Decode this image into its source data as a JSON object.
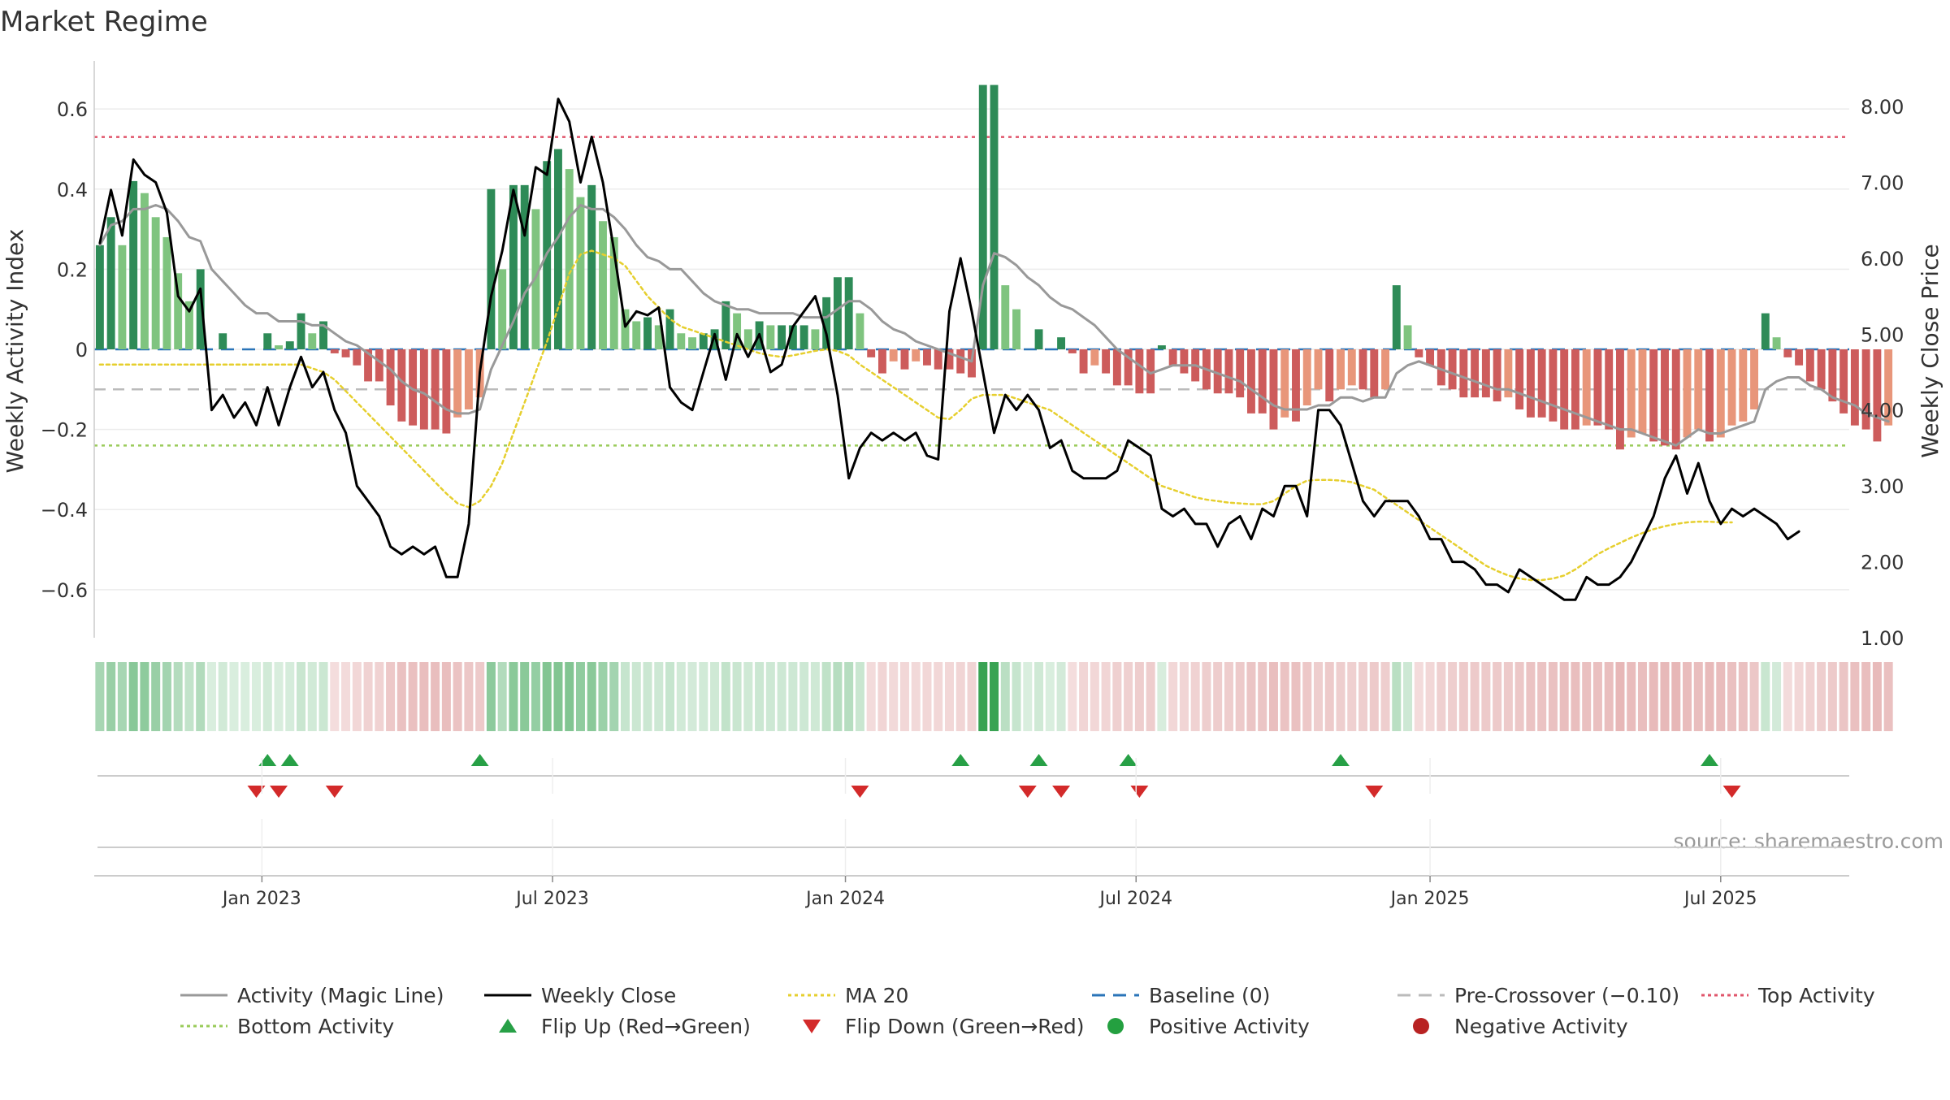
{
  "chart_data": {
    "type": "bar",
    "title": "Market Regime",
    "source": "source: sharemaestro.com",
    "ylabel_left": "Weekly Activity Index",
    "ylabel_right": "Weekly Close Price",
    "ylim_left": [
      -0.72,
      0.72
    ],
    "ylim_right": [
      1.0,
      8.6
    ],
    "yticks_left": [
      {
        "v": 0.6,
        "label": "0.6"
      },
      {
        "v": 0.4,
        "label": "0.4"
      },
      {
        "v": 0.2,
        "label": "0.2"
      },
      {
        "v": 0,
        "label": "0"
      },
      {
        "v": -0.2,
        "label": "−0.2"
      },
      {
        "v": -0.4,
        "label": "−0.4"
      },
      {
        "v": -0.6,
        "label": "−0.6"
      }
    ],
    "yticks_right": [
      "8.00",
      "7.00",
      "6.00",
      "5.00",
      "4.00",
      "3.00",
      "2.00",
      "1.00"
    ],
    "xticks": [
      {
        "week": 14.5,
        "label": "Jan 2023"
      },
      {
        "week": 40.5,
        "label": "Jul 2023"
      },
      {
        "week": 66.7,
        "label": "Jan 2024"
      },
      {
        "week": 92.7,
        "label": "Jul 2024"
      },
      {
        "week": 119,
        "label": "Jan 2025"
      },
      {
        "week": 145,
        "label": "Jul 2025"
      }
    ],
    "num_weeks": 157,
    "reference_lines": {
      "top_activity": 0.53,
      "baseline": 0,
      "pre_crossover": -0.1,
      "bottom_activity": -0.24
    },
    "activity_bars": [
      0.26,
      0.33,
      0.26,
      0.42,
      0.39,
      0.33,
      0.28,
      0.19,
      0.12,
      0.2,
      0.0,
      0.04,
      0.0,
      0.0,
      0.0,
      0.04,
      0.01,
      0.02,
      0.09,
      0.04,
      0.07,
      -0.01,
      -0.02,
      -0.04,
      -0.08,
      -0.08,
      -0.14,
      -0.18,
      -0.19,
      -0.2,
      -0.2,
      -0.21,
      -0.17,
      -0.15,
      -0.12,
      0.4,
      0.2,
      0.41,
      0.41,
      0.35,
      0.47,
      0.5,
      0.45,
      0.38,
      0.41,
      0.32,
      0.28,
      0.1,
      0.07,
      0.08,
      0.06,
      0.1,
      0.04,
      0.03,
      0.04,
      0.05,
      0.12,
      0.09,
      0.05,
      0.07,
      0.06,
      0.06,
      0.06,
      0.06,
      0.05,
      0.13,
      0.18,
      0.18,
      0.09,
      -0.02,
      -0.06,
      -0.03,
      -0.05,
      -0.03,
      -0.04,
      -0.05,
      -0.05,
      -0.06,
      -0.07,
      0.66,
      0.66,
      0.16,
      0.1,
      0.0,
      0.05,
      0.0,
      0.03,
      -0.01,
      -0.06,
      -0.04,
      -0.06,
      -0.09,
      -0.09,
      -0.11,
      -0.11,
      0.01,
      -0.04,
      -0.06,
      -0.08,
      -0.1,
      -0.11,
      -0.11,
      -0.12,
      -0.16,
      -0.16,
      -0.2,
      -0.17,
      -0.18,
      -0.14,
      -0.1,
      -0.13,
      -0.1,
      -0.09,
      -0.1,
      -0.12,
      -0.1,
      0.16,
      0.06,
      -0.02,
      -0.04,
      -0.09,
      -0.1,
      -0.12,
      -0.12,
      -0.12,
      -0.13,
      -0.12,
      -0.15,
      -0.17,
      -0.17,
      -0.18,
      -0.2,
      -0.2,
      -0.19,
      -0.19,
      -0.2,
      -0.25,
      -0.22,
      -0.21,
      -0.23,
      -0.24,
      -0.25,
      -0.22,
      -0.2,
      -0.23,
      -0.22,
      -0.19,
      -0.18,
      -0.15,
      0.09,
      0.03,
      -0.02,
      -0.04,
      -0.08,
      -0.1,
      -0.13,
      -0.16,
      -0.19,
      -0.2,
      -0.23,
      -0.19
    ],
    "series": [
      {
        "name": "Activity (Magic Line)",
        "color": "#999999",
        "values": [
          0.26,
          0.31,
          0.32,
          0.35,
          0.35,
          0.36,
          0.35,
          0.32,
          0.28,
          0.27,
          0.2,
          0.17,
          0.14,
          0.11,
          0.09,
          0.09,
          0.07,
          0.07,
          0.07,
          0.06,
          0.06,
          0.04,
          0.02,
          0.01,
          -0.01,
          -0.03,
          -0.05,
          -0.08,
          -0.1,
          -0.11,
          -0.13,
          -0.15,
          -0.16,
          -0.16,
          -0.15,
          -0.05,
          0.01,
          0.07,
          0.14,
          0.18,
          0.24,
          0.28,
          0.33,
          0.36,
          0.35,
          0.35,
          0.33,
          0.3,
          0.26,
          0.23,
          0.22,
          0.2,
          0.2,
          0.17,
          0.14,
          0.12,
          0.11,
          0.1,
          0.1,
          0.09,
          0.09,
          0.09,
          0.09,
          0.08,
          0.08,
          0.08,
          0.1,
          0.12,
          0.12,
          0.1,
          0.07,
          0.05,
          0.04,
          0.02,
          0.01,
          0.0,
          -0.01,
          -0.02,
          -0.03,
          0.16,
          0.24,
          0.23,
          0.21,
          0.18,
          0.16,
          0.13,
          0.11,
          0.1,
          0.08,
          0.06,
          0.03,
          0.0,
          -0.02,
          -0.04,
          -0.06,
          -0.05,
          -0.04,
          -0.04,
          -0.04,
          -0.05,
          -0.06,
          -0.07,
          -0.08,
          -0.1,
          -0.12,
          -0.14,
          -0.15,
          -0.15,
          -0.15,
          -0.14,
          -0.14,
          -0.12,
          -0.12,
          -0.13,
          -0.12,
          -0.12,
          -0.06,
          -0.04,
          -0.03,
          -0.04,
          -0.05,
          -0.06,
          -0.07,
          -0.08,
          -0.09,
          -0.1,
          -0.1,
          -0.11,
          -0.12,
          -0.13,
          -0.14,
          -0.15,
          -0.16,
          -0.17,
          -0.18,
          -0.19,
          -0.2,
          -0.2,
          -0.21,
          -0.22,
          -0.23,
          -0.24,
          -0.22,
          -0.2,
          -0.21,
          -0.21,
          -0.2,
          -0.19,
          -0.18,
          -0.1,
          -0.08,
          -0.07,
          -0.07,
          -0.09,
          -0.1,
          -0.12,
          -0.13,
          -0.14,
          -0.16,
          -0.17,
          -0.18
        ]
      },
      {
        "name": "Weekly Close",
        "color": "#000000",
        "values": [
          6.2,
          6.9,
          6.3,
          7.3,
          7.1,
          7.0,
          6.6,
          5.5,
          5.3,
          5.6,
          4.0,
          4.2,
          3.9,
          4.1,
          3.8,
          4.3,
          3.8,
          4.3,
          4.7,
          4.3,
          4.5,
          4.0,
          3.7,
          3.0,
          2.8,
          2.6,
          2.2,
          2.1,
          2.2,
          2.1,
          2.2,
          1.8,
          1.8,
          2.5,
          4.5,
          5.5,
          6.1,
          6.9,
          6.3,
          7.2,
          7.1,
          8.1,
          7.8,
          7.0,
          7.6,
          7.0,
          6.1,
          5.1,
          5.3,
          5.25,
          5.35,
          4.3,
          4.1,
          4.0,
          4.5,
          5.0,
          4.4,
          5.0,
          4.7,
          5.0,
          4.5,
          4.6,
          5.1,
          5.3,
          5.5,
          5.0,
          4.2,
          3.1,
          3.5,
          3.7,
          3.6,
          3.7,
          3.6,
          3.7,
          3.4,
          3.35,
          5.3,
          6.0,
          5.3,
          4.5,
          3.7,
          4.2,
          4.0,
          4.2,
          4.0,
          3.5,
          3.6,
          3.2,
          3.1,
          3.1,
          3.1,
          3.2,
          3.6,
          3.5,
          3.4,
          2.7,
          2.6,
          2.7,
          2.5,
          2.5,
          2.2,
          2.5,
          2.6,
          2.3,
          2.7,
          2.6,
          3.0,
          3.0,
          2.6,
          4.0,
          4.0,
          3.8,
          3.3,
          2.8,
          2.6,
          2.8,
          2.8,
          2.8,
          2.6,
          2.3,
          2.3,
          2.0,
          2.0,
          1.9,
          1.7,
          1.7,
          1.6,
          1.9,
          1.8,
          1.7,
          1.6,
          1.5,
          1.5,
          1.8,
          1.7,
          1.7,
          1.8,
          2.0,
          2.3,
          2.6,
          3.1,
          3.4,
          2.9,
          3.3,
          2.8,
          2.5,
          2.7,
          2.6,
          2.7,
          2.6,
          2.5,
          2.3,
          2.4
        ]
      },
      {
        "name": "MA 20",
        "color": "#e6cf2e",
        "values": [
          4.6,
          4.6,
          4.6,
          4.6,
          4.6,
          4.6,
          4.6,
          4.6,
          4.6,
          4.6,
          4.6,
          4.6,
          4.6,
          4.6,
          4.6,
          4.6,
          4.6,
          4.6,
          4.6,
          4.55,
          4.5,
          4.4,
          4.25,
          4.1,
          3.95,
          3.8,
          3.65,
          3.5,
          3.35,
          3.2,
          3.05,
          2.9,
          2.77,
          2.72,
          2.8,
          3.0,
          3.3,
          3.7,
          4.1,
          4.5,
          4.9,
          5.35,
          5.8,
          6.05,
          6.1,
          6.05,
          6.0,
          5.9,
          5.7,
          5.5,
          5.35,
          5.2,
          5.1,
          5.05,
          5.0,
          4.95,
          4.9,
          4.85,
          4.8,
          4.75,
          4.72,
          4.7,
          4.72,
          4.75,
          4.78,
          4.8,
          4.78,
          4.72,
          4.6,
          4.5,
          4.4,
          4.3,
          4.2,
          4.1,
          4.0,
          3.9,
          3.88,
          4.0,
          4.15,
          4.2,
          4.2,
          4.2,
          4.15,
          4.1,
          4.05,
          4.0,
          3.9,
          3.8,
          3.7,
          3.6,
          3.5,
          3.4,
          3.3,
          3.2,
          3.1,
          3.0,
          2.95,
          2.9,
          2.85,
          2.82,
          2.8,
          2.78,
          2.77,
          2.76,
          2.76,
          2.8,
          2.9,
          3.0,
          3.07,
          3.08,
          3.08,
          3.07,
          3.05,
          3.0,
          2.95,
          2.85,
          2.75,
          2.65,
          2.55,
          2.45,
          2.35,
          2.25,
          2.15,
          2.05,
          1.95,
          1.88,
          1.82,
          1.78,
          1.76,
          1.76,
          1.78,
          1.82,
          1.9,
          2.0,
          2.1,
          2.18,
          2.25,
          2.32,
          2.38,
          2.43,
          2.47,
          2.5,
          2.52,
          2.53,
          2.53,
          2.52,
          2.52
        ]
      }
    ],
    "flip_up_weeks": [
      15,
      17,
      34,
      77,
      84,
      92,
      111,
      144
    ],
    "flip_down_weeks": [
      14,
      16,
      21,
      68,
      83,
      86,
      93,
      114,
      146
    ],
    "legend": [
      {
        "label": "Activity (Magic Line)",
        "kind": "line-solid",
        "color": "#999999"
      },
      {
        "label": "Weekly Close",
        "kind": "line-solid",
        "color": "#000000"
      },
      {
        "label": "MA 20",
        "kind": "line-dotted",
        "color": "#e6cf2e"
      },
      {
        "label": "Baseline (0)",
        "kind": "line-dashed",
        "color": "#2a74b8"
      },
      {
        "label": "Pre-Crossover (−0.10)",
        "kind": "line-dashed",
        "color": "#bbbbbb"
      },
      {
        "label": "Top Activity",
        "kind": "line-dotted",
        "color": "#e0556b"
      },
      {
        "label": "Bottom Activity",
        "kind": "line-dotted",
        "color": "#9acb5a"
      },
      {
        "label": "Flip Up (Red→Green)",
        "kind": "triangle-up",
        "color": "#27a046"
      },
      {
        "label": "Flip Down (Green→Red)",
        "kind": "triangle-down",
        "color": "#d32a2a"
      },
      {
        "label": "Positive Activity",
        "kind": "dot",
        "color": "#24a040"
      },
      {
        "label": "Negative Activity",
        "kind": "dot",
        "color": "#b82222"
      }
    ],
    "colors": {
      "bar_pos_strong": "#2e8b57",
      "bar_pos_light": "#7fc47f",
      "bar_neg_strong": "#cd5c5c",
      "bar_neg_light": "#e8967a"
    }
  }
}
